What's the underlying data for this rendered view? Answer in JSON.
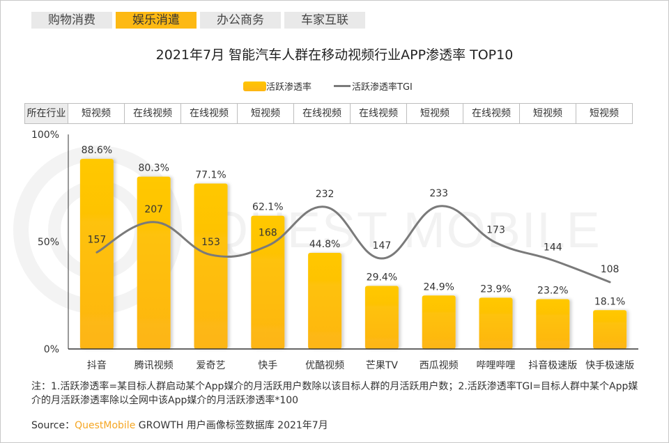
{
  "tabs": [
    {
      "label": "购物消费",
      "active": false
    },
    {
      "label": "娱乐消遣",
      "active": true
    },
    {
      "label": "办公商务",
      "active": false
    },
    {
      "label": "车家互联",
      "active": false
    }
  ],
  "industry_row": {
    "header": "所在行业",
    "values": [
      "短视频",
      "在线视频",
      "在线视频",
      "短视频",
      "在线视频",
      "在线视频",
      "短视频",
      "在线视频",
      "短视频",
      "短视频"
    ]
  },
  "watermark": "QUEST MOBILE",
  "note": "注：1.活跃渗透率=某目标人群启动某个App媒介的月活跃用户数除以该目标人群的月活跃用户数；2.活跃渗透率TGI=目标人群中某个App媒介的月活跃渗透率除以全网中该App媒介的月活跃渗透率*100",
  "source": {
    "prefix": "Source：",
    "brand": "QuestMobile",
    "suffix": " GROWTH 用户画像标签数据库 2021年7月"
  },
  "colors": {
    "bar_top": "#ffc800",
    "bar_bottom": "#fdb515",
    "line": "#7a7a7a",
    "active_tab": "#fdb913",
    "brand": "#f5a623"
  },
  "chart_data": {
    "type": "bar",
    "title": "2021年7月 智能汽车人群在移动视频行业APP渗透率 TOP10",
    "categories": [
      "抖音",
      "腾讯视频",
      "爱奇艺",
      "快手",
      "优酷视频",
      "芒果TV",
      "西瓜视频",
      "哔哩哔哩",
      "抖音极速版",
      "快手极速版"
    ],
    "series": [
      {
        "name": "活跃渗透率",
        "type": "bar",
        "unit": "%",
        "values": [
          88.6,
          80.3,
          77.1,
          62.1,
          44.8,
          29.4,
          24.9,
          23.9,
          23.2,
          18.1
        ],
        "labels": [
          "88.6%",
          "80.3%",
          "77.1%",
          "62.1%",
          "44.8%",
          "29.4%",
          "24.9%",
          "23.9%",
          "23.2%",
          "18.1%"
        ]
      },
      {
        "name": "活跃渗透率TGI",
        "type": "line",
        "values": [
          157,
          207,
          153,
          168,
          232,
          147,
          233,
          173,
          144,
          108
        ]
      }
    ],
    "ylim": [
      0,
      100
    ],
    "yticks": [
      "0%",
      "50%",
      "100%"
    ],
    "ytick_values": [
      0,
      50,
      100
    ],
    "xlabel": "",
    "ylabel": "",
    "legend": "top-center",
    "grid": false
  }
}
